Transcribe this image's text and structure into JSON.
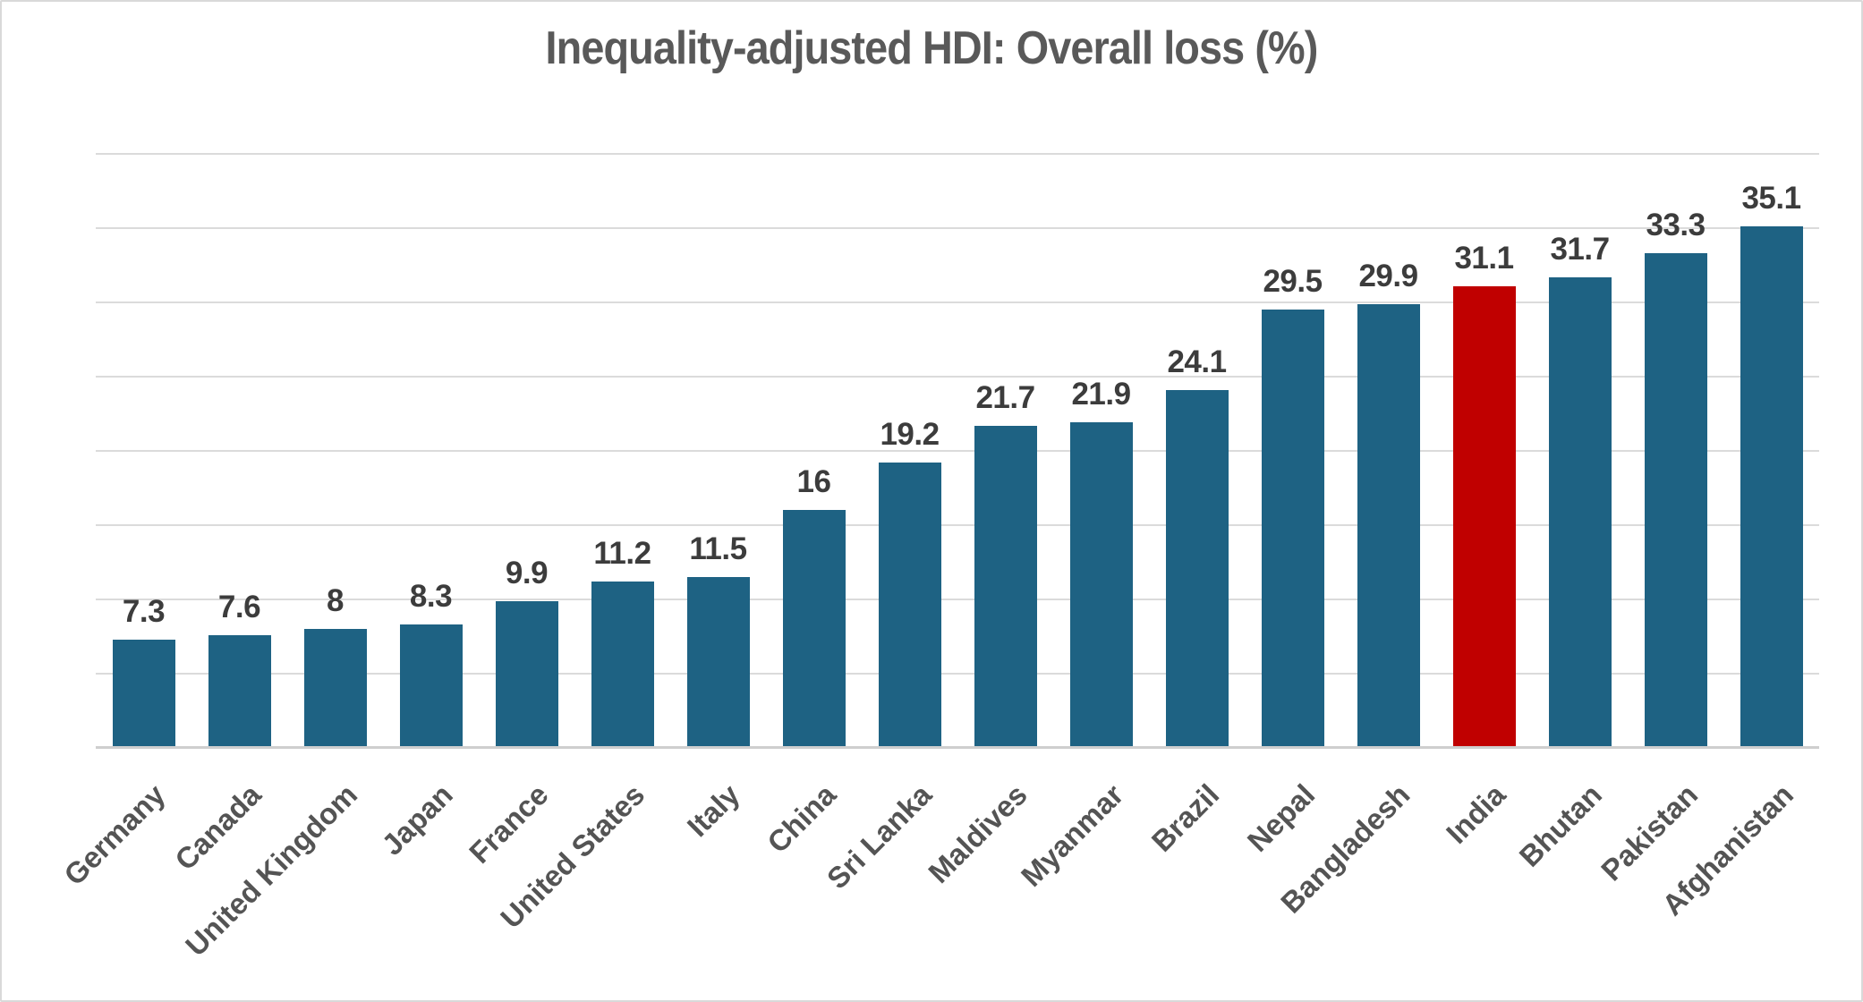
{
  "frame": {
    "background": "#FFFFFF",
    "border_color": "#D9D9D9"
  },
  "chart_data": {
    "type": "bar",
    "title": "Inequality-adjusted HDI: Overall loss (%)",
    "categories": [
      "Germany",
      "Canada",
      "United Kingdom",
      "Japan",
      "France",
      "United States",
      "Italy",
      "China",
      "Sri Lanka",
      "Maldives",
      "Myanmar",
      "Brazil",
      "Nepal",
      "Bangladesh",
      "India",
      "Bhutan",
      "Pakistan",
      "Afghanistan"
    ],
    "values": [
      7.3,
      7.6,
      8,
      8.3,
      9.9,
      11.2,
      11.5,
      16,
      19.2,
      21.7,
      21.9,
      24.1,
      29.5,
      29.9,
      31.1,
      31.7,
      33.3,
      35.1
    ],
    "data_labels": [
      "7.3",
      "7.6",
      "8",
      "8.3",
      "9.9",
      "11.2",
      "11.5",
      "16",
      "19.2",
      "21.7",
      "21.9",
      "24.1",
      "29.5",
      "29.9",
      "31.1",
      "31.7",
      "33.3",
      "35.1"
    ],
    "highlight_category": "India",
    "highlight_index": 14,
    "bar_color": "#1E6283",
    "highlight_color": "#C00000",
    "title_color": "#595959",
    "data_label_color": "#3C3C3C",
    "category_label_color": "#545454",
    "gridline_color": "#DBDBDB",
    "axis_line_color": "#CFCFCF",
    "xlabel": "",
    "ylabel": "",
    "ylim": [
      0,
      40
    ],
    "gridline_step": 5,
    "grid": true,
    "y_axis_tick_labels_visible": false,
    "legend_position": "none",
    "category_label_rotation_deg": 45
  }
}
